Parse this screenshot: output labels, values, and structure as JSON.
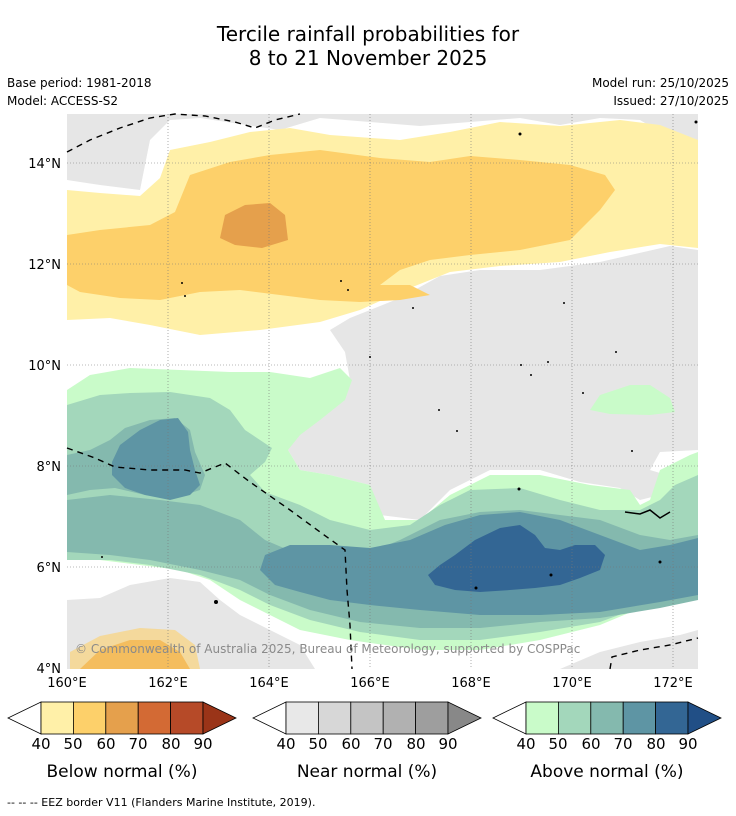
{
  "title_line1": "Tercile rainfall probabilities for",
  "title_line2": "8 to 21 November 2025",
  "base_period": "Base period: 1981-2018",
  "model": "Model: ACCESS-S2",
  "model_run": "Model run: 25/10/2025",
  "issued": "Issued: 27/10/2025",
  "copyright": "© Commonwealth of Australia 2025, Bureau of Meteorology, supported by COSPPac",
  "footer": "--  --  -- EEZ border V11 (Flanders Marine Institute, 2019).",
  "axes": {
    "lat_labels": [
      "14°N",
      "12°N",
      "10°N",
      "8°N",
      "6°N",
      "4°N"
    ],
    "lon_labels": [
      "160°E",
      "162°E",
      "164°E",
      "166°E",
      "168°E",
      "170°E",
      "172°E"
    ]
  },
  "colorbars": {
    "ticks": [
      "40",
      "50",
      "60",
      "70",
      "80",
      "90"
    ],
    "below": {
      "label": "Below normal (%)",
      "colors": [
        "#fff0a8",
        "#fdd06a",
        "#e5a04c",
        "#d36a34",
        "#b64a28",
        "#9a3418"
      ]
    },
    "near": {
      "label": "Near normal (%)",
      "colors": [
        "#e8e8e8",
        "#d7d7d7",
        "#c4c4c4",
        "#b1b1b1",
        "#9e9e9e",
        "#888888"
      ]
    },
    "above": {
      "label": "Above normal (%)",
      "colors": [
        "#c9fbc9",
        "#a3d7bb",
        "#84b9ae",
        "#5e95a4",
        "#336694",
        "#214f86"
      ]
    }
  },
  "colors": {
    "below_40": "#fff0a8",
    "below_50": "#fdd06a",
    "below_60": "#e5a04c",
    "near_40": "#e6e6e6",
    "above_40": "#c9fbc9",
    "above_50": "#a3d7bb",
    "above_60": "#84b9ae",
    "above_70": "#5e95a4",
    "above_80": "#336694"
  }
}
